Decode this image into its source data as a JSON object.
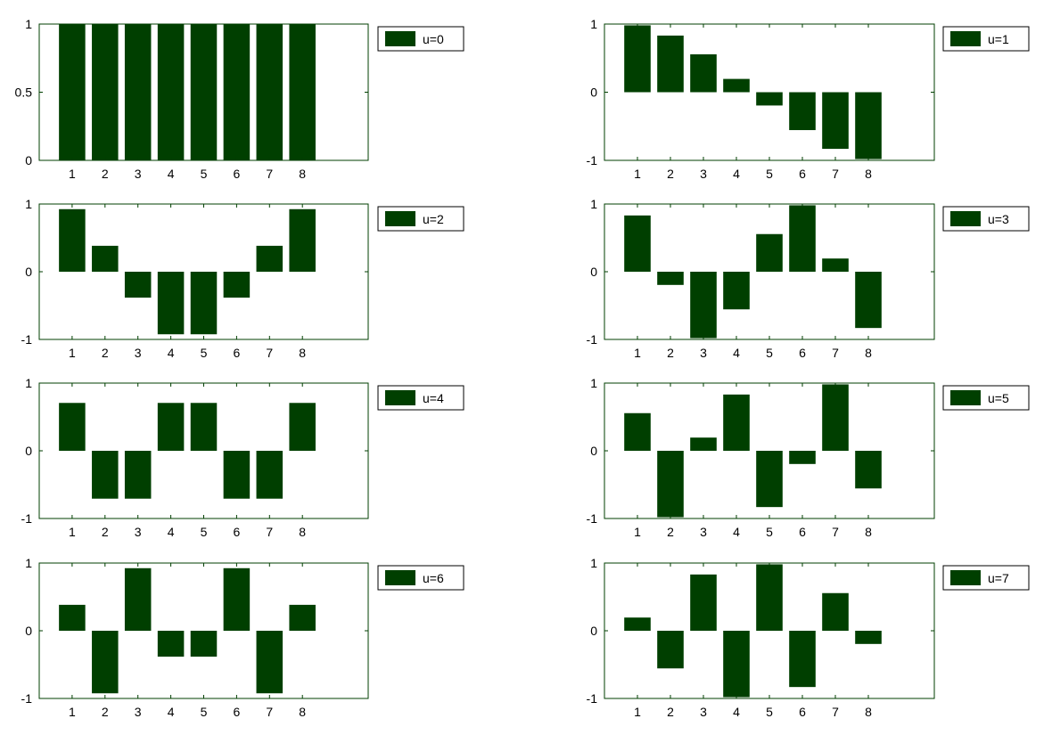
{
  "chart_data": [
    {
      "type": "bar",
      "legend": "u=0",
      "categories": [
        1,
        2,
        3,
        4,
        5,
        6,
        7,
        8
      ],
      "values": [
        1,
        1,
        1,
        1,
        1,
        1,
        1,
        1
      ],
      "xlim": [
        0,
        10
      ],
      "ylim": [
        0,
        1
      ],
      "yticks": [
        0,
        0.5,
        1
      ],
      "xticks": [
        1,
        2,
        3,
        4,
        5,
        6,
        7,
        8
      ],
      "legend_position": "outside-top-right"
    },
    {
      "type": "bar",
      "legend": "u=1",
      "categories": [
        1,
        2,
        3,
        4,
        5,
        6,
        7,
        8
      ],
      "values": [
        0.981,
        0.831,
        0.556,
        0.195,
        -0.195,
        -0.556,
        -0.831,
        -0.981
      ],
      "xlim": [
        0,
        10
      ],
      "ylim": [
        -1,
        1
      ],
      "yticks": [
        -1,
        0,
        1
      ],
      "xticks": [
        1,
        2,
        3,
        4,
        5,
        6,
        7,
        8
      ],
      "legend_position": "outside-top-right"
    },
    {
      "type": "bar",
      "legend": "u=2",
      "categories": [
        1,
        2,
        3,
        4,
        5,
        6,
        7,
        8
      ],
      "values": [
        0.924,
        0.383,
        -0.383,
        -0.924,
        -0.924,
        -0.383,
        0.383,
        0.924
      ],
      "xlim": [
        0,
        10
      ],
      "ylim": [
        -1,
        1
      ],
      "yticks": [
        -1,
        0,
        1
      ],
      "xticks": [
        1,
        2,
        3,
        4,
        5,
        6,
        7,
        8
      ],
      "legend_position": "outside-top-right"
    },
    {
      "type": "bar",
      "legend": "u=3",
      "categories": [
        1,
        2,
        3,
        4,
        5,
        6,
        7,
        8
      ],
      "values": [
        0.831,
        -0.195,
        -0.981,
        -0.556,
        0.556,
        0.981,
        0.195,
        -0.831
      ],
      "xlim": [
        0,
        10
      ],
      "ylim": [
        -1,
        1
      ],
      "yticks": [
        -1,
        0,
        1
      ],
      "xticks": [
        1,
        2,
        3,
        4,
        5,
        6,
        7,
        8
      ],
      "legend_position": "outside-top-right"
    },
    {
      "type": "bar",
      "legend": "u=4",
      "categories": [
        1,
        2,
        3,
        4,
        5,
        6,
        7,
        8
      ],
      "values": [
        0.707,
        -0.707,
        -0.707,
        0.707,
        0.707,
        -0.707,
        -0.707,
        0.707
      ],
      "xlim": [
        0,
        10
      ],
      "ylim": [
        -1,
        1
      ],
      "yticks": [
        -1,
        0,
        1
      ],
      "xticks": [
        1,
        2,
        3,
        4,
        5,
        6,
        7,
        8
      ],
      "legend_position": "outside-top-right"
    },
    {
      "type": "bar",
      "legend": "u=5",
      "categories": [
        1,
        2,
        3,
        4,
        5,
        6,
        7,
        8
      ],
      "values": [
        0.556,
        -0.981,
        0.195,
        0.831,
        -0.831,
        -0.195,
        0.981,
        -0.556
      ],
      "xlim": [
        0,
        10
      ],
      "ylim": [
        -1,
        1
      ],
      "yticks": [
        -1,
        0,
        1
      ],
      "xticks": [
        1,
        2,
        3,
        4,
        5,
        6,
        7,
        8
      ],
      "legend_position": "outside-top-right"
    },
    {
      "type": "bar",
      "legend": "u=6",
      "categories": [
        1,
        2,
        3,
        4,
        5,
        6,
        7,
        8
      ],
      "values": [
        0.383,
        -0.924,
        0.924,
        -0.383,
        -0.383,
        0.924,
        -0.924,
        0.383
      ],
      "xlim": [
        0,
        10
      ],
      "ylim": [
        -1,
        1
      ],
      "yticks": [
        -1,
        0,
        1
      ],
      "xticks": [
        1,
        2,
        3,
        4,
        5,
        6,
        7,
        8
      ],
      "legend_position": "outside-top-right"
    },
    {
      "type": "bar",
      "legend": "u=7",
      "categories": [
        1,
        2,
        3,
        4,
        5,
        6,
        7,
        8
      ],
      "values": [
        0.195,
        -0.556,
        0.831,
        -0.981,
        0.981,
        -0.831,
        0.556,
        -0.195
      ],
      "xlim": [
        0,
        10
      ],
      "ylim": [
        -1,
        1
      ],
      "yticks": [
        -1,
        0,
        1
      ],
      "xticks": [
        1,
        2,
        3,
        4,
        5,
        6,
        7,
        8
      ],
      "legend_position": "outside-top-right"
    }
  ],
  "colors": {
    "bar": "#003f00",
    "axes": "#003f00",
    "legend_border": "#000000"
  }
}
